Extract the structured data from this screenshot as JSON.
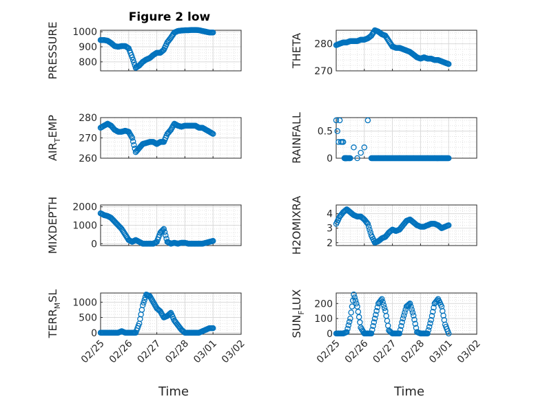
{
  "figure": {
    "title": "Figure 2 low",
    "xlabel": "Time",
    "date_ticks": [
      "02/25",
      "02/26",
      "02/27",
      "02/28",
      "03/01",
      "03/02"
    ],
    "marker_color": "#0072BD"
  },
  "chart_data": [
    {
      "type": "scatter",
      "ylabel": "PRESSURE",
      "ylabel_text": [
        "PRESSURE"
      ],
      "ylim": [
        740,
        1010
      ],
      "yticks": [
        800,
        900,
        1000
      ],
      "x": [
        "02/25 00:00",
        "02/25 03:00",
        "02/25 06:00",
        "02/25 09:00",
        "02/25 12:00",
        "02/25 15:00",
        "02/25 18:00",
        "02/25 21:00",
        "02/26 00:00",
        "02/26 03:00",
        "02/26 06:00",
        "02/26 09:00",
        "02/26 12:00",
        "02/26 15:00",
        "02/26 18:00",
        "02/26 21:00",
        "02/27 00:00",
        "02/27 03:00",
        "02/27 06:00",
        "02/27 09:00",
        "02/27 12:00",
        "02/27 15:00",
        "02/27 18:00",
        "02/27 21:00",
        "02/28 00:00",
        "02/28 03:00",
        "02/28 06:00",
        "02/28 09:00",
        "02/28 12:00",
        "02/28 15:00",
        "02/28 18:00",
        "02/28 21:00",
        "03/01 00:00"
      ],
      "y": [
        945,
        945,
        940,
        925,
        905,
        900,
        905,
        905,
        890,
        830,
        760,
        775,
        800,
        815,
        825,
        845,
        860,
        860,
        880,
        930,
        960,
        995,
        1005,
        1008,
        1010,
        1010,
        1012,
        1012,
        1010,
        1005,
        1000,
        995,
        995
      ]
    },
    {
      "type": "scatter",
      "ylabel": "THETA",
      "ylabel_text": [
        "THETA"
      ],
      "ylim": [
        270,
        285
      ],
      "yticks": [
        270,
        280
      ],
      "x": [
        "02/25 00:00",
        "02/25 03:00",
        "02/25 06:00",
        "02/25 09:00",
        "02/25 12:00",
        "02/25 15:00",
        "02/25 18:00",
        "02/25 21:00",
        "02/26 00:00",
        "02/26 03:00",
        "02/26 06:00",
        "02/26 09:00",
        "02/26 12:00",
        "02/26 15:00",
        "02/26 18:00",
        "02/26 21:00",
        "02/27 00:00",
        "02/27 03:00",
        "02/27 06:00",
        "02/27 09:00",
        "02/27 12:00",
        "02/27 15:00",
        "02/27 18:00",
        "02/27 21:00",
        "02/28 00:00",
        "02/28 03:00",
        "02/28 06:00",
        "02/28 09:00",
        "02/28 12:00",
        "02/28 15:00",
        "02/28 18:00",
        "02/28 21:00",
        "03/01 00:00"
      ],
      "y": [
        279.5,
        280,
        280.5,
        280.5,
        281,
        281,
        281,
        281.5,
        281.5,
        282,
        283,
        285,
        284.5,
        283.5,
        283,
        281,
        279,
        278.5,
        278.5,
        278,
        277.5,
        277,
        276,
        275,
        274.5,
        275,
        274.5,
        274.5,
        274,
        274,
        273.5,
        273,
        272.5
      ]
    },
    {
      "type": "scatter",
      "ylabel": "AIR_TEMP",
      "ylabel_text": [
        "AIR",
        "T",
        "EMP"
      ],
      "ylim": [
        260,
        280
      ],
      "yticks": [
        260,
        270,
        280
      ],
      "x": [
        "02/25 00:00",
        "02/25 03:00",
        "02/25 06:00",
        "02/25 09:00",
        "02/25 12:00",
        "02/25 15:00",
        "02/25 18:00",
        "02/25 21:00",
        "02/26 00:00",
        "02/26 03:00",
        "02/26 06:00",
        "02/26 09:00",
        "02/26 12:00",
        "02/26 15:00",
        "02/26 18:00",
        "02/26 21:00",
        "02/27 00:00",
        "02/27 03:00",
        "02/27 06:00",
        "02/27 09:00",
        "02/27 12:00",
        "02/27 15:00",
        "02/27 18:00",
        "02/27 21:00",
        "02/28 00:00",
        "02/28 03:00",
        "02/28 06:00",
        "02/28 09:00",
        "02/28 12:00",
        "02/28 15:00",
        "02/28 18:00",
        "02/28 21:00",
        "03/01 00:00"
      ],
      "y": [
        275,
        276,
        277,
        276,
        274,
        273,
        273,
        273.5,
        273,
        270,
        263,
        265,
        267,
        267.5,
        268,
        268,
        267,
        268,
        268,
        272,
        274,
        277,
        276,
        275.5,
        276,
        276,
        276,
        276,
        275,
        275,
        274,
        273,
        272
      ]
    },
    {
      "type": "scatter",
      "ylabel": "RAINFALL",
      "ylabel_text": [
        "RAINFALL"
      ],
      "ylim": [
        0,
        0.75
      ],
      "yticks": [
        0,
        0.5
      ],
      "x": [
        "02/25 00:00",
        "02/25 01:00",
        "02/25 02:00",
        "02/25 03:00",
        "02/25 04:00",
        "02/25 05:00",
        "02/25 06:00",
        "02/25 07:00",
        "02/25 08:00",
        "02/25 09:00",
        "02/25 12:00",
        "02/25 15:00",
        "02/25 18:00",
        "02/25 21:00",
        "02/26 00:00",
        "02/26 03:00",
        "02/26 06:00",
        "02/26 09:00",
        "02/26 12:00",
        "02/26 15:00",
        "02/26 18:00",
        "02/26 21:00",
        "02/27 00:00",
        "02/27 03:00",
        "02/27 06:00",
        "02/27 09:00",
        "02/27 12:00",
        "02/27 15:00",
        "02/27 18:00",
        "02/27 21:00",
        "02/28 00:00",
        "02/28 03:00",
        "02/28 06:00",
        "02/28 09:00",
        "02/28 12:00",
        "02/28 15:00",
        "02/28 18:00",
        "02/28 21:00",
        "03/01 00:00"
      ],
      "y": [
        0.7,
        0.5,
        0.3,
        0.7,
        0.3,
        0.3,
        0.3,
        0,
        0,
        0,
        0,
        0.2,
        0,
        0.1,
        0.2,
        0.7,
        0,
        0,
        0,
        0,
        0,
        0,
        0,
        0,
        0,
        0,
        0,
        0,
        0,
        0,
        0,
        0,
        0,
        0,
        0,
        0,
        0,
        0,
        0
      ]
    },
    {
      "type": "scatter",
      "ylabel": "MIXDEPTH",
      "ylabel_text": [
        "MIXDEPTH"
      ],
      "ylim": [
        -100,
        2100
      ],
      "yticks": [
        0,
        1000,
        2000
      ],
      "x": [
        "02/25 00:00",
        "02/25 03:00",
        "02/25 06:00",
        "02/25 09:00",
        "02/25 12:00",
        "02/25 15:00",
        "02/25 18:00",
        "02/25 21:00",
        "02/26 00:00",
        "02/26 03:00",
        "02/26 06:00",
        "02/26 09:00",
        "02/26 12:00",
        "02/26 15:00",
        "02/26 18:00",
        "02/26 21:00",
        "02/27 00:00",
        "02/27 03:00",
        "02/27 06:00",
        "02/27 09:00",
        "02/27 12:00",
        "02/27 15:00",
        "02/27 18:00",
        "02/27 21:00",
        "02/28 00:00",
        "02/28 03:00",
        "02/28 06:00",
        "02/28 09:00",
        "02/28 12:00",
        "02/28 15:00",
        "02/28 18:00",
        "02/28 21:00",
        "03/01 00:00"
      ],
      "y": [
        1650,
        1550,
        1500,
        1400,
        1200,
        1000,
        800,
        500,
        200,
        100,
        200,
        100,
        0,
        0,
        0,
        0,
        100,
        600,
        800,
        100,
        0,
        50,
        0,
        50,
        50,
        0,
        0,
        0,
        0,
        0,
        50,
        100,
        150
      ]
    },
    {
      "type": "scatter",
      "ylabel": "H2OMIXRA",
      "ylabel_text": [
        "H2OMIXRA"
      ],
      "ylim": [
        1.8,
        4.6
      ],
      "yticks": [
        2,
        3,
        4
      ],
      "x": [
        "02/25 00:00",
        "02/25 03:00",
        "02/25 06:00",
        "02/25 09:00",
        "02/25 12:00",
        "02/25 15:00",
        "02/25 18:00",
        "02/25 21:00",
        "02/26 00:00",
        "02/26 03:00",
        "02/26 06:00",
        "02/26 09:00",
        "02/26 12:00",
        "02/26 15:00",
        "02/26 18:00",
        "02/26 21:00",
        "02/27 00:00",
        "02/27 03:00",
        "02/27 06:00",
        "02/27 09:00",
        "02/27 12:00",
        "02/27 15:00",
        "02/27 18:00",
        "02/27 21:00",
        "02/28 00:00",
        "02/28 03:00",
        "02/28 06:00",
        "02/28 09:00",
        "02/28 12:00",
        "02/28 15:00",
        "02/28 18:00",
        "02/28 21:00",
        "03/01 00:00"
      ],
      "y": [
        3.3,
        3.8,
        4.1,
        4.3,
        4.1,
        3.9,
        3.8,
        3.8,
        3.6,
        3.3,
        2.5,
        2.0,
        2.1,
        2.3,
        2.4,
        2.7,
        2.9,
        2.8,
        2.9,
        3.2,
        3.5,
        3.6,
        3.4,
        3.2,
        3.1,
        3.1,
        3.2,
        3.3,
        3.3,
        3.2,
        3.0,
        3.1,
        3.2
      ]
    },
    {
      "type": "scatter",
      "ylabel": "TERR_MSL",
      "ylabel_text": [
        "TERR",
        "M",
        "SL"
      ],
      "ylim": [
        -50,
        1300
      ],
      "yticks": [
        0,
        500,
        1000
      ],
      "x": [
        "02/25 00:00",
        "02/25 03:00",
        "02/25 06:00",
        "02/25 09:00",
        "02/25 12:00",
        "02/25 15:00",
        "02/25 18:00",
        "02/25 21:00",
        "02/26 00:00",
        "02/26 03:00",
        "02/26 06:00",
        "02/26 09:00",
        "02/26 12:00",
        "02/26 15:00",
        "02/26 18:00",
        "02/26 21:00",
        "02/27 00:00",
        "02/27 03:00",
        "02/27 06:00",
        "02/27 09:00",
        "02/27 12:00",
        "02/27 15:00",
        "02/27 18:00",
        "02/27 21:00",
        "02/28 00:00",
        "02/28 03:00",
        "02/28 06:00",
        "02/28 09:00",
        "02/28 12:00",
        "02/28 15:00",
        "02/28 18:00",
        "02/28 21:00",
        "03/01 00:00"
      ],
      "y": [
        0,
        0,
        0,
        0,
        0,
        0,
        50,
        0,
        0,
        0,
        0,
        300,
        900,
        1250,
        1200,
        1000,
        800,
        700,
        500,
        550,
        650,
        400,
        250,
        100,
        0,
        0,
        0,
        0,
        0,
        50,
        100,
        150,
        150
      ]
    },
    {
      "type": "scatter",
      "ylabel": "SUN_FLUX",
      "ylabel_text": [
        "SUN",
        "F",
        "LUX"
      ],
      "ylim": [
        -5,
        270
      ],
      "yticks": [
        0,
        100,
        200
      ],
      "x": [
        "02/25 00:00",
        "02/25 03:00",
        "02/25 06:00",
        "02/25 09:00",
        "02/25 12:00",
        "02/25 15:00",
        "02/25 18:00",
        "02/25 21:00",
        "02/26 00:00",
        "02/26 03:00",
        "02/26 06:00",
        "02/26 09:00",
        "02/26 12:00",
        "02/26 15:00",
        "02/26 18:00",
        "02/26 21:00",
        "02/27 00:00",
        "02/27 03:00",
        "02/27 06:00",
        "02/27 09:00",
        "02/27 12:00",
        "02/27 15:00",
        "02/27 18:00",
        "02/27 21:00",
        "02/28 00:00",
        "02/28 03:00",
        "02/28 06:00",
        "02/28 09:00",
        "02/28 12:00",
        "02/28 15:00",
        "02/28 18:00",
        "02/28 21:00",
        "03/01 00:00"
      ],
      "y": [
        0,
        0,
        0,
        10,
        100,
        260,
        180,
        40,
        0,
        0,
        0,
        100,
        200,
        230,
        150,
        20,
        0,
        0,
        0,
        100,
        180,
        200,
        120,
        10,
        0,
        0,
        0,
        90,
        200,
        230,
        180,
        60,
        0
      ]
    }
  ]
}
